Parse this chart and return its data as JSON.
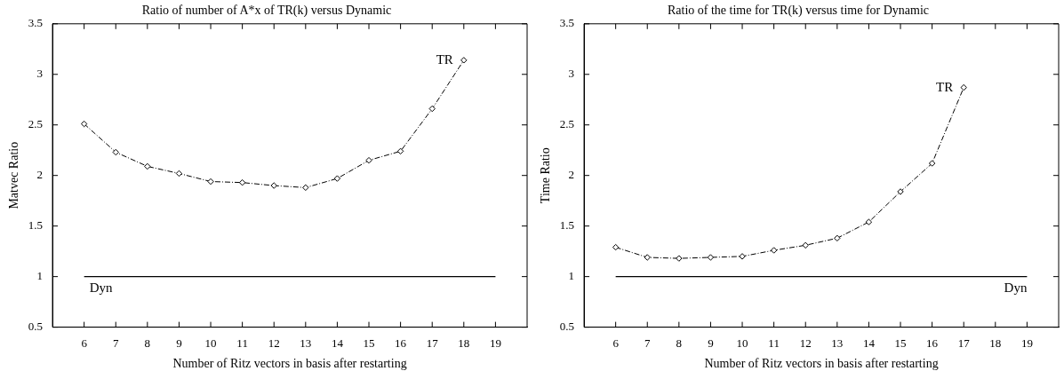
{
  "chart_data": [
    {
      "type": "line",
      "title": "Ratio of number of A*x of TR(k) versus Dynamic",
      "xlabel": "Number of Ritz vectors in basis after restarting",
      "ylabel": "Matvec Ratio",
      "xlim": [
        5,
        20
      ],
      "xticks": [
        6,
        7,
        8,
        9,
        10,
        11,
        12,
        13,
        14,
        15,
        16,
        17,
        18,
        19
      ],
      "ylim": [
        0.5,
        3.5
      ],
      "yticks": [
        0.5,
        1,
        1.5,
        2,
        2.5,
        3,
        3.5
      ],
      "grid": false,
      "legend": false,
      "series": [
        {
          "name": "TR",
          "color": "#000000",
          "marker": "diamond",
          "line_style": "dashed",
          "x": [
            6,
            7,
            8,
            9,
            10,
            11,
            12,
            13,
            14,
            15,
            16,
            17,
            18
          ],
          "values": [
            2.51,
            2.23,
            2.09,
            2.02,
            1.94,
            1.93,
            1.9,
            1.88,
            1.97,
            2.15,
            2.24,
            2.66,
            3.14
          ]
        },
        {
          "name": "Dyn",
          "color": "#000000",
          "marker": "none",
          "line_style": "solid",
          "x": [
            6,
            19
          ],
          "values": [
            1,
            1
          ]
        }
      ]
    },
    {
      "type": "line",
      "title": "Ratio of the time for TR(k) versus time for Dynamic",
      "xlabel": "Number of Ritz vectors in basis after restarting",
      "ylabel": "Time Ratio",
      "xlim": [
        5,
        20
      ],
      "xticks": [
        6,
        7,
        8,
        9,
        10,
        11,
        12,
        13,
        14,
        15,
        16,
        17,
        18,
        19
      ],
      "ylim": [
        0.5,
        3.5
      ],
      "yticks": [
        0.5,
        1,
        1.5,
        2,
        2.5,
        3,
        3.5
      ],
      "grid": false,
      "legend": false,
      "series": [
        {
          "name": "TR",
          "color": "#000000",
          "marker": "diamond",
          "line_style": "dashed",
          "x": [
            6,
            7,
            8,
            9,
            10,
            11,
            12,
            13,
            14,
            15,
            16,
            17
          ],
          "values": [
            1.29,
            1.19,
            1.18,
            1.19,
            1.2,
            1.26,
            1.31,
            1.38,
            1.54,
            1.84,
            2.12,
            2.87
          ]
        },
        {
          "name": "Dyn",
          "color": "#000000",
          "marker": "none",
          "line_style": "solid",
          "x": [
            6,
            19
          ],
          "values": [
            1,
            1
          ]
        }
      ]
    }
  ]
}
